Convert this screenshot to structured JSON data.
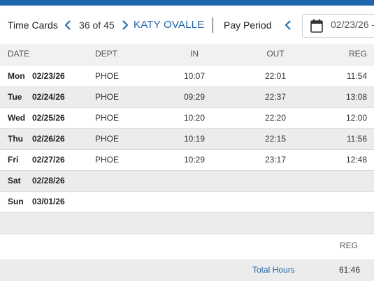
{
  "header": {
    "title": "Time Cards",
    "counter": "36 of 45",
    "employee_name": "KATY OVALLE",
    "pay_period_label": "Pay Period",
    "date_value": "02/23/26 -"
  },
  "columns": {
    "date": "DATE",
    "dept": "DEPT",
    "in": "IN",
    "out": "OUT",
    "reg": "REG"
  },
  "rows": [
    {
      "day": "Mon",
      "date": "02/23/26",
      "dept": "PHOE",
      "in": "10:07",
      "out": "22:01",
      "reg": "11:54"
    },
    {
      "day": "Tue",
      "date": "02/24/26",
      "dept": "PHOE",
      "in": "09:29",
      "out": "22:37",
      "reg": "13:08"
    },
    {
      "day": "Wed",
      "date": "02/25/26",
      "dept": "PHOE",
      "in": "10:20",
      "out": "22:20",
      "reg": "12:00"
    },
    {
      "day": "Thu",
      "date": "02/26/26",
      "dept": "PHOE",
      "in": "10:19",
      "out": "22:15",
      "reg": "11:56"
    },
    {
      "day": "Fri",
      "date": "02/27/26",
      "dept": "PHOE",
      "in": "10:29",
      "out": "23:17",
      "reg": "12:48"
    },
    {
      "day": "Sat",
      "date": "02/28/26",
      "dept": "",
      "in": "",
      "out": "",
      "reg": ""
    },
    {
      "day": "Sun",
      "date": "03/01/26",
      "dept": "",
      "in": "",
      "out": "",
      "reg": ""
    }
  ],
  "summary": {
    "reg_label": "REG",
    "total_hours_label": "Total Hours",
    "total_hours_value": "61:46"
  },
  "colors": {
    "accent": "#1f66ad",
    "header_band": "#f1f1f1",
    "alt_row": "#ececec"
  }
}
